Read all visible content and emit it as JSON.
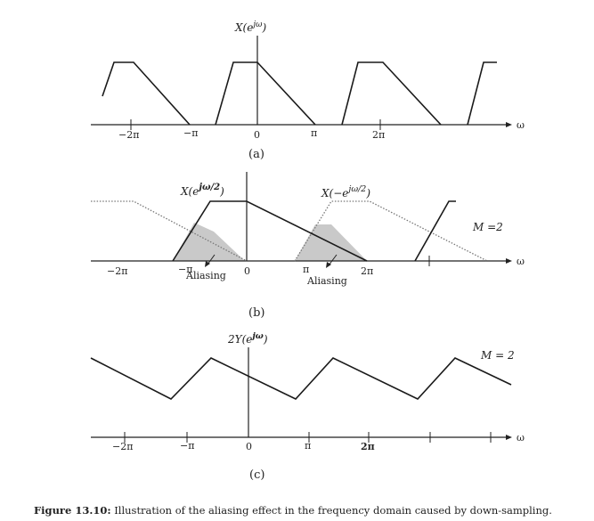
{
  "panel_a": {
    "function_label": {
      "base": "X(e",
      "sup": "jω",
      "close": ")"
    },
    "tick_labels": [
      "−2π",
      "−π",
      "0",
      "π",
      "2π"
    ],
    "axis_label": "ω",
    "sublabel": "(a)"
  },
  "panel_b": {
    "function_label_1": {
      "base": "X(e",
      "sup": "jω/2",
      "close": ")"
    },
    "function_label_2": {
      "base": "X(−e",
      "sup": "jω/2",
      "close": ")"
    },
    "m_label": "M =2",
    "tick_labels": [
      "−2π",
      "−π",
      "0",
      "π",
      "2π"
    ],
    "aliasing_label_1": "Aliasing",
    "aliasing_label_2": "Aliasing",
    "axis_label": "ω",
    "sublabel": "(b)"
  },
  "panel_c": {
    "function_label": {
      "prefix": "2",
      "base": "Y(e",
      "sup": "jω",
      "close": ")"
    },
    "m_label": "M = 2",
    "tick_labels": [
      "−2π",
      "−π",
      "0",
      "π",
      "2π"
    ],
    "axis_label": "ω",
    "sublabel": "(c)"
  },
  "caption": {
    "bold": "Figure 13.10:",
    "text": " Illustration of the aliasing effect in the frequency domain caused by down-sampling."
  }
}
